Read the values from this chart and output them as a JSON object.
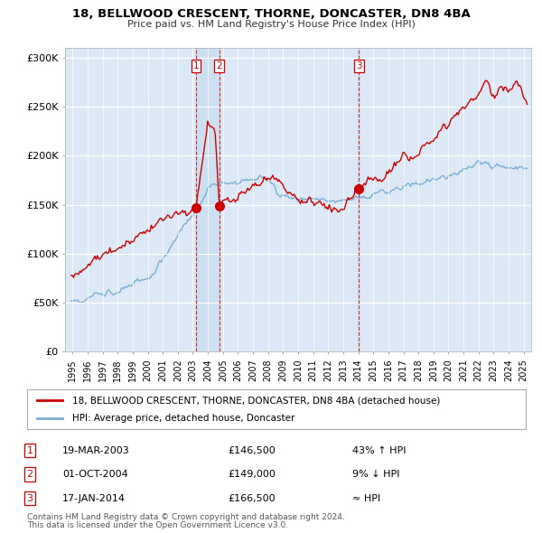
{
  "title": "18, BELLWOOD CRESCENT, THORNE, DONCASTER, DN8 4BA",
  "subtitle": "Price paid vs. HM Land Registry's House Price Index (HPI)",
  "background_color": "#ffffff",
  "plot_background": "#dce8f5",
  "sale_color": "#cc0000",
  "hpi_color": "#7aafd4",
  "shade_color": "#c8ddf0",
  "transactions": [
    {
      "num": 1,
      "date_x": 2003.21,
      "price": 146500,
      "label": "19-MAR-2003",
      "price_label": "£146,500",
      "rel": "43% ↑ HPI"
    },
    {
      "num": 2,
      "date_x": 2004.75,
      "price": 149000,
      "label": "01-OCT-2004",
      "price_label": "£149,000",
      "rel": "9% ↓ HPI"
    },
    {
      "num": 3,
      "date_x": 2014.04,
      "price": 166500,
      "label": "17-JAN-2014",
      "price_label": "£166,500",
      "rel": "≈ HPI"
    }
  ],
  "legend_sale_label": "18, BELLWOOD CRESCENT, THORNE, DONCASTER, DN8 4BA (detached house)",
  "legend_hpi_label": "HPI: Average price, detached house, Doncaster",
  "footer1": "Contains HM Land Registry data © Crown copyright and database right 2024.",
  "footer2": "This data is licensed under the Open Government Licence v3.0.",
  "ylim": [
    0,
    310000
  ],
  "xlim": [
    1994.5,
    2025.5
  ],
  "yticks": [
    0,
    50000,
    100000,
    150000,
    200000,
    250000,
    300000
  ],
  "ytick_labels": [
    "£0",
    "£50K",
    "£100K",
    "£150K",
    "£200K",
    "£250K",
    "£300K"
  ]
}
